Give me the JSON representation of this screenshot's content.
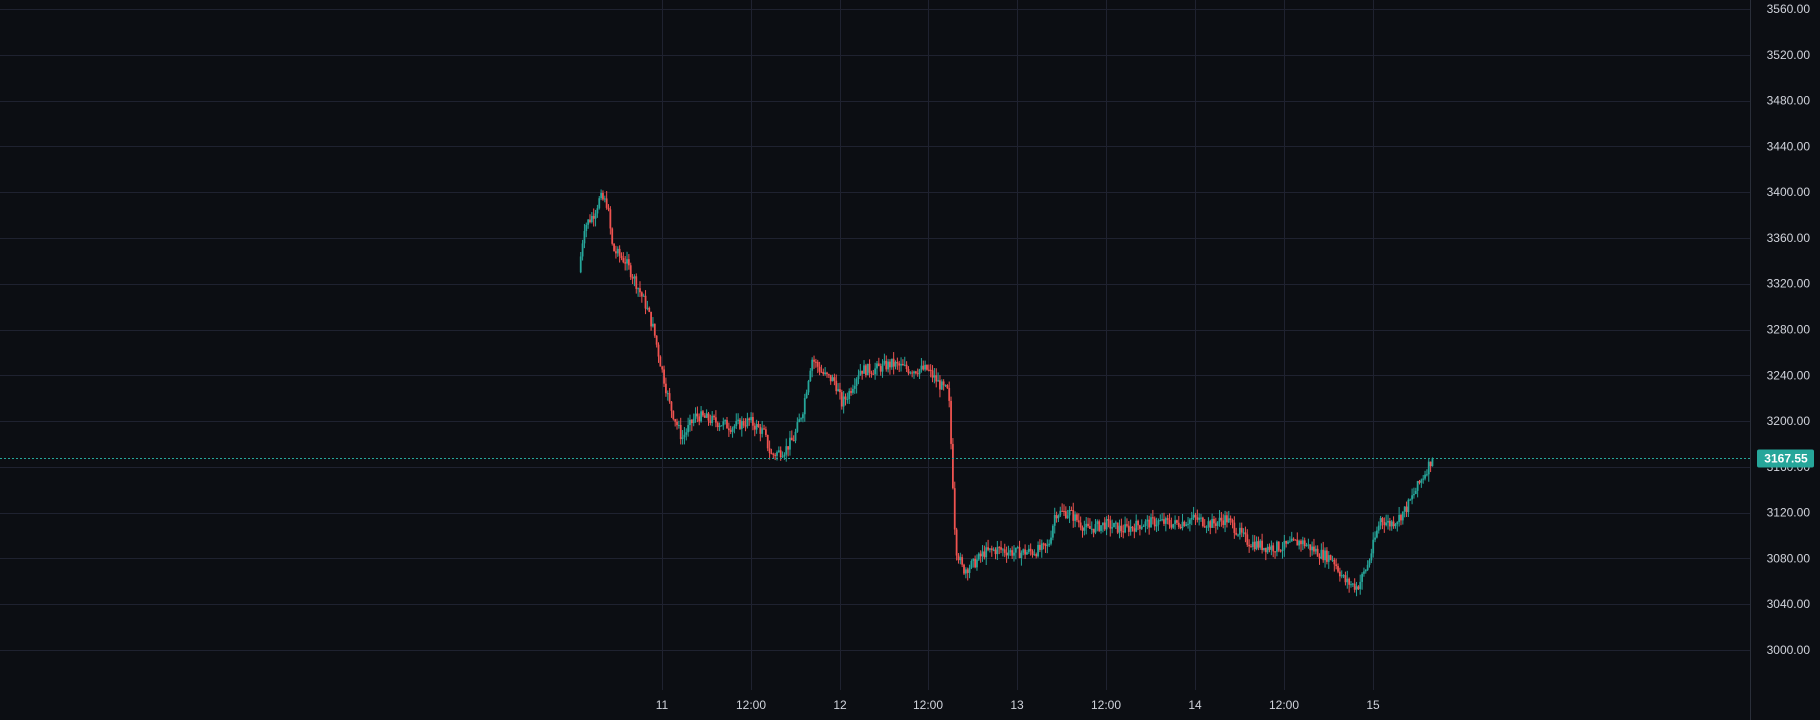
{
  "chart_data": {
    "type": "candlestick",
    "ylim": [
      3000,
      3560
    ],
    "y_ticks": [
      "3000.00",
      "3040.00",
      "3080.00",
      "3120.00",
      "3160.00",
      "3200.00",
      "3240.00",
      "3280.00",
      "3320.00",
      "3360.00",
      "3400.00",
      "3440.00",
      "3480.00",
      "3520.00",
      "3560.00"
    ],
    "x_ticks": [
      "11",
      "12:00",
      "12",
      "12:00",
      "13",
      "12:00",
      "14",
      "12:00",
      "15"
    ],
    "last_price": 3167.55,
    "last_price_label": "3167.55",
    "grid": true,
    "colors": {
      "background": "#0c0e13",
      "grid": "#1f2230",
      "up": "#26a69a",
      "down": "#ef5350",
      "price_line": "#26a69a",
      "price_tag": "#26a69a",
      "axis_text": "#d1d4dc"
    },
    "trend_points": [
      [
        10.54,
        3330
      ],
      [
        10.57,
        3370
      ],
      [
        10.62,
        3380
      ],
      [
        10.66,
        3395
      ],
      [
        10.7,
        3390
      ],
      [
        10.73,
        3350
      ],
      [
        10.8,
        3340
      ],
      [
        10.85,
        3325
      ],
      [
        10.92,
        3300
      ],
      [
        10.96,
        3280
      ],
      [
        11.0,
        3250
      ],
      [
        11.05,
        3215
      ],
      [
        11.12,
        3185
      ],
      [
        11.2,
        3205
      ],
      [
        11.3,
        3200
      ],
      [
        11.4,
        3195
      ],
      [
        11.5,
        3200
      ],
      [
        11.58,
        3190
      ],
      [
        11.62,
        3170
      ],
      [
        11.7,
        3175
      ],
      [
        11.75,
        3185
      ],
      [
        11.8,
        3210
      ],
      [
        11.85,
        3255
      ],
      [
        11.92,
        3240
      ],
      [
        11.98,
        3235
      ],
      [
        12.02,
        3215
      ],
      [
        12.06,
        3225
      ],
      [
        12.12,
        3245
      ],
      [
        12.2,
        3245
      ],
      [
        12.3,
        3250
      ],
      [
        12.4,
        3245
      ],
      [
        12.5,
        3245
      ],
      [
        12.58,
        3230
      ],
      [
        12.62,
        3225
      ],
      [
        12.64,
        3160
      ],
      [
        12.66,
        3090
      ],
      [
        12.7,
        3070
      ],
      [
        12.76,
        3075
      ],
      [
        12.82,
        3085
      ],
      [
        12.9,
        3088
      ],
      [
        13.0,
        3085
      ],
      [
        13.1,
        3086
      ],
      [
        13.18,
        3090
      ],
      [
        13.22,
        3120
      ],
      [
        13.3,
        3120
      ],
      [
        13.4,
        3105
      ],
      [
        13.5,
        3110
      ],
      [
        13.6,
        3105
      ],
      [
        13.7,
        3110
      ],
      [
        13.8,
        3112
      ],
      [
        13.9,
        3110
      ],
      [
        14.0,
        3115
      ],
      [
        14.1,
        3110
      ],
      [
        14.18,
        3115
      ],
      [
        14.24,
        3105
      ],
      [
        14.3,
        3095
      ],
      [
        14.4,
        3090
      ],
      [
        14.5,
        3090
      ],
      [
        14.6,
        3095
      ],
      [
        14.7,
        3085
      ],
      [
        14.78,
        3080
      ],
      [
        14.85,
        3060
      ],
      [
        14.92,
        3055
      ],
      [
        14.98,
        3075
      ],
      [
        15.05,
        3115
      ],
      [
        15.1,
        3110
      ],
      [
        15.15,
        3115
      ],
      [
        15.2,
        3125
      ],
      [
        15.25,
        3140
      ],
      [
        15.3,
        3155
      ],
      [
        15.34,
        3167.55
      ]
    ]
  }
}
